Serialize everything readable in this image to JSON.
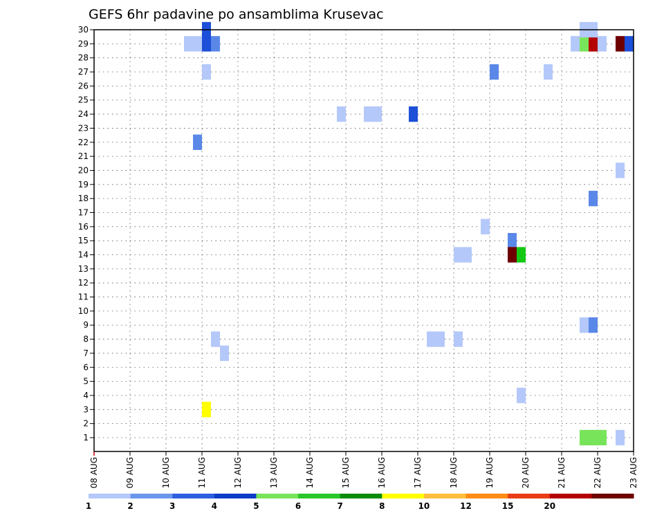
{
  "chart_data": {
    "type": "heatmap",
    "title": "GEFS 6hr padavine po ansamblima Krusevac",
    "xlabel": "",
    "ylabel": "",
    "x_tick_labels": [
      "08 AUG",
      "09 AUG",
      "10 AUG",
      "11 AUG",
      "12 AUG",
      "13 AUG",
      "14 AUG",
      "15 AUG",
      "16 AUG",
      "17 AUG",
      "18 AUG",
      "19 AUG",
      "20 AUG",
      "21 AUG",
      "22 AUG",
      "23 AUG"
    ],
    "xlim_days": [
      0,
      15
    ],
    "time_step_hours": 6,
    "y_tick_labels": [
      "1",
      "2",
      "3",
      "4",
      "5",
      "6",
      "7",
      "8",
      "9",
      "10",
      "11",
      "12",
      "13",
      "14",
      "15",
      "16",
      "17",
      "18",
      "19",
      "20",
      "21",
      "22",
      "23",
      "24",
      "25",
      "26",
      "27",
      "28",
      "29",
      "30"
    ],
    "ylim_members": [
      0,
      30
    ],
    "grid": "dotted",
    "colorbar": {
      "labels": [
        "1",
        "2",
        "3",
        "4",
        "5",
        "6",
        "7",
        "8",
        "10",
        "12",
        "15",
        "20"
      ],
      "colors": [
        "#b4c8fa",
        "#6a96ec",
        "#2d5fe0",
        "#0c3cc8",
        "#78e45a",
        "#28c828",
        "#0a8c0a",
        "#ffff00",
        "#ffbe3c",
        "#ff8c14",
        "#e83c14",
        "#b40000",
        "#6e0000"
      ]
    },
    "cells": [
      {
        "member": 29,
        "day": 2.5,
        "hours": 12,
        "color": "#b4c8fa"
      },
      {
        "member": 27,
        "day": 3.0,
        "hours": 6,
        "color": "#b4c8fa"
      },
      {
        "member": 29,
        "day": 3.0,
        "hours": 6,
        "color": "#1d4fd8"
      },
      {
        "member": 30,
        "day": 3.0,
        "hours": 6,
        "color": "#1d4fd8"
      },
      {
        "member": 29,
        "day": 3.25,
        "hours": 6,
        "color": "#5a88e8"
      },
      {
        "member": 22,
        "day": 2.75,
        "hours": 6,
        "color": "#5a88e8"
      },
      {
        "member": 8,
        "day": 3.25,
        "hours": 6,
        "color": "#b4c8fa"
      },
      {
        "member": 7,
        "day": 3.5,
        "hours": 6,
        "color": "#b4c8fa"
      },
      {
        "member": 3,
        "day": 3.0,
        "hours": 6,
        "color": "#ffff00"
      },
      {
        "member": 24,
        "day": 6.75,
        "hours": 6,
        "color": "#b4c8fa"
      },
      {
        "member": 24,
        "day": 7.5,
        "hours": 12,
        "color": "#b4c8fa"
      },
      {
        "member": 24,
        "day": 8.75,
        "hours": 6,
        "color": "#1d4fd8"
      },
      {
        "member": 8,
        "day": 9.25,
        "hours": 12,
        "color": "#b4c8fa"
      },
      {
        "member": 8,
        "day": 10.0,
        "hours": 6,
        "color": "#b4c8fa"
      },
      {
        "member": 14,
        "day": 10.0,
        "hours": 12,
        "color": "#b4c8fa"
      },
      {
        "member": 27,
        "day": 11.0,
        "hours": 6,
        "color": "#5a88e8"
      },
      {
        "member": 16,
        "day": 10.75,
        "hours": 6,
        "color": "#b4c8fa"
      },
      {
        "member": 15,
        "day": 11.5,
        "hours": 6,
        "color": "#5a88e8"
      },
      {
        "member": 14,
        "day": 11.5,
        "hours": 6,
        "color": "#6e0000"
      },
      {
        "member": 14,
        "day": 11.75,
        "hours": 6,
        "color": "#14c814"
      },
      {
        "member": 4,
        "day": 11.75,
        "hours": 6,
        "color": "#b4c8fa"
      },
      {
        "member": 27,
        "day": 12.5,
        "hours": 6,
        "color": "#b4c8fa"
      },
      {
        "member": 29,
        "day": 13.25,
        "hours": 6,
        "color": "#b4c8fa"
      },
      {
        "member": 29,
        "day": 13.5,
        "hours": 6,
        "color": "#78e45a"
      },
      {
        "member": 29,
        "day": 13.75,
        "hours": 6,
        "color": "#b40000"
      },
      {
        "member": 29,
        "day": 14.0,
        "hours": 6,
        "color": "#b4c8fa"
      },
      {
        "member": 30,
        "day": 13.5,
        "hours": 12,
        "color": "#b4c8fa"
      },
      {
        "member": 29,
        "day": 14.5,
        "hours": 6,
        "color": "#6e0000"
      },
      {
        "member": 29,
        "day": 14.75,
        "hours": 6,
        "color": "#1d4fd8"
      },
      {
        "member": 20,
        "day": 14.5,
        "hours": 6,
        "color": "#b4c8fa"
      },
      {
        "member": 18,
        "day": 13.75,
        "hours": 6,
        "color": "#5a88e8"
      },
      {
        "member": 9,
        "day": 13.5,
        "hours": 6,
        "color": "#b4c8fa"
      },
      {
        "member": 9,
        "day": 13.75,
        "hours": 6,
        "color": "#5a88e8"
      },
      {
        "member": 1,
        "day": 13.5,
        "hours": 18,
        "color": "#78e45a"
      },
      {
        "member": 1,
        "day": 14.5,
        "hours": 6,
        "color": "#b4c8fa"
      }
    ]
  }
}
